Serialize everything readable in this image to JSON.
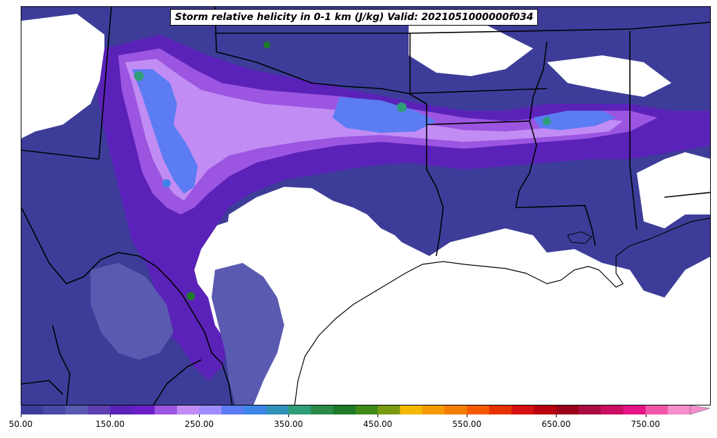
{
  "title": "Storm relative helicity in 0-1 km (J/kg) Valid: 2021051000000f034",
  "colorbar": {
    "min": 50,
    "max": 800,
    "step": 25,
    "extend": "max",
    "colors": [
      "#3d3d99",
      "#4a4aa8",
      "#5a5ab0",
      "#5e3fb0",
      "#5a22b8",
      "#6a1fc8",
      "#9b55e0",
      "#c28cf5",
      "#a08cff",
      "#5b7cf2",
      "#3f84e8",
      "#2f92b8",
      "#2e9d7a",
      "#2c8a48",
      "#1f7a28",
      "#3f8a18",
      "#7a9a10",
      "#f5b800",
      "#f59a00",
      "#f57e00",
      "#f55a00",
      "#e63200",
      "#d41010",
      "#b80010",
      "#9a0018",
      "#a80c40",
      "#cc0e62",
      "#e61488",
      "#f055a8",
      "#f58ccc"
    ],
    "ticks": [
      "50.00",
      "150.00",
      "250.00",
      "350.00",
      "450.00",
      "550.00",
      "650.00",
      "750.00"
    ]
  },
  "map": {
    "region": "South-central United States",
    "field": "Storm relative helicity 0-1 km",
    "units": "J/kg",
    "fill_colors": {
      "level_1": "#3d3d99",
      "level_2": "#5a5ab0",
      "level_3": "#5a22b8",
      "level_4": "#9b55e0",
      "level_5": "#c28cf5",
      "level_6": "#5b7cf2",
      "level_7": "#2e9d7a",
      "level_8": "#1f7a28"
    },
    "boundary_color": "#000000"
  }
}
